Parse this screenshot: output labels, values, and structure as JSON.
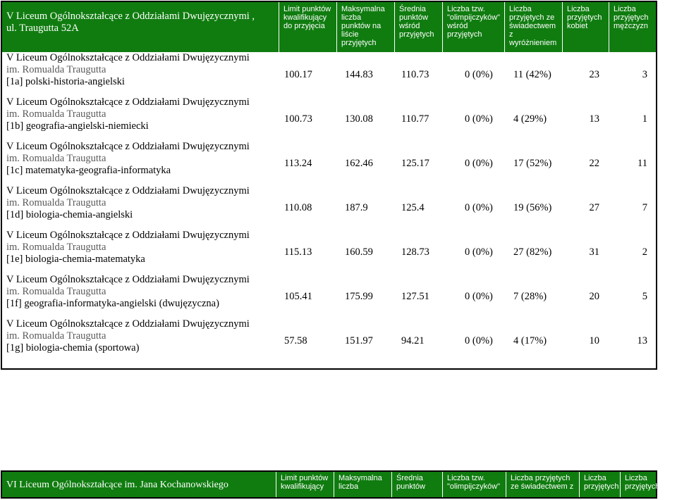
{
  "table1": {
    "school_title_line1": "V Liceum Ogólnokształcące z Oddziałami Dwujęzycznymi ,",
    "school_title_line2": "ul. Traugutta 52A",
    "headers": [
      [
        "Limit punktów",
        "kwalifikujący",
        "do przyjęcia"
      ],
      [
        "Maksymalna",
        "liczba",
        "punktów na",
        "liście",
        "przyjętych"
      ],
      [
        "Średnia",
        "punktów",
        "wśród",
        "przyjętych"
      ],
      [
        "Liczba tzw.",
        "\"olimpijczyków\"",
        "wśród",
        "przyjętych"
      ],
      [
        "Liczba",
        "przyjętych ze",
        "świadectwem",
        "z",
        "wyróżnieniem"
      ],
      [
        "Liczba",
        "przyjętych",
        "kobiet"
      ],
      [
        "Liczba",
        "przyjętych",
        "mężczyzn"
      ]
    ],
    "rows": [
      {
        "school": "V Liceum Ogólnokształcące z Oddziałami Dwujęzycznymi",
        "im": "im. Romualda Traugutta",
        "class": "[1a] polski-historia-angielski",
        "limit": "100.17",
        "max": "144.83",
        "avg": "110.73",
        "olymp": "0 (0%)",
        "honors": "11 (42%)",
        "women": "23",
        "men": "3"
      },
      {
        "school": "V Liceum Ogólnokształcące z Oddziałami Dwujęzycznymi",
        "im": "im. Romualda Traugutta",
        "class": "[1b] geografia-angielski-niemiecki",
        "limit": "100.73",
        "max": "130.08",
        "avg": "110.77",
        "olymp": "0 (0%)",
        "honors": "4 (29%)",
        "women": "13",
        "men": "1"
      },
      {
        "school": "V Liceum Ogólnokształcące z Oddziałami Dwujęzycznymi",
        "im": "im. Romualda Traugutta",
        "class": "[1c] matematyka-geografia-informatyka",
        "limit": "113.24",
        "max": "162.46",
        "avg": "125.17",
        "olymp": "0 (0%)",
        "honors": "17 (52%)",
        "women": "22",
        "men": "11"
      },
      {
        "school": "V Liceum Ogólnokształcące z Oddziałami Dwujęzycznymi",
        "im": "im. Romualda Traugutta",
        "class": "[1d] biologia-chemia-angielski",
        "limit": "110.08",
        "max": "187.9",
        "avg": "125.4",
        "olymp": "0 (0%)",
        "honors": "19 (56%)",
        "women": "27",
        "men": "7"
      },
      {
        "school": "V Liceum Ogólnokształcące z Oddziałami Dwujęzycznymi",
        "im": "im. Romualda Traugutta",
        "class": "[1e] biologia-chemia-matematyka",
        "limit": "115.13",
        "max": "160.59",
        "avg": "128.73",
        "olymp": "0 (0%)",
        "honors": "27 (82%)",
        "women": "31",
        "men": "2"
      },
      {
        "school": "V Liceum Ogólnokształcące z Oddziałami Dwujęzycznymi",
        "im": "im. Romualda Traugutta",
        "class": "[1f] geografia-informatyka-angielski (dwujęzyczna)",
        "limit": "105.41",
        "max": "175.99",
        "avg": "127.51",
        "olymp": "0 (0%)",
        "honors": "7 (28%)",
        "women": "20",
        "men": "5"
      },
      {
        "school": "V Liceum Ogólnokształcące z Oddziałami Dwujęzycznymi",
        "im": "im. Romualda Traugutta",
        "class": "[1g] biologia-chemia (sportowa)",
        "limit": "57.58",
        "max": "151.97",
        "avg": "94.21",
        "olymp": "0 (0%)",
        "honors": "4 (17%)",
        "women": "10",
        "men": "13"
      }
    ]
  },
  "table2": {
    "school_title": "VI Liceum Ogólnokształcące im. Jana Kochanowskiego",
    "headers": [
      [
        "Limit punktów",
        "kwalifikujący"
      ],
      [
        "Maksymalna",
        "liczba"
      ],
      [
        "Średnia",
        "punktów"
      ],
      [
        "Liczba tzw.",
        "\"olimpijczyków\""
      ],
      [
        "Liczba przyjętych",
        "ze świadectwem z"
      ],
      [
        "Liczba",
        "przyjętych"
      ],
      [
        "Liczba",
        "przyjętych"
      ]
    ]
  },
  "colors": {
    "header_bg": "#107c10",
    "header_text": "#ffffff"
  }
}
